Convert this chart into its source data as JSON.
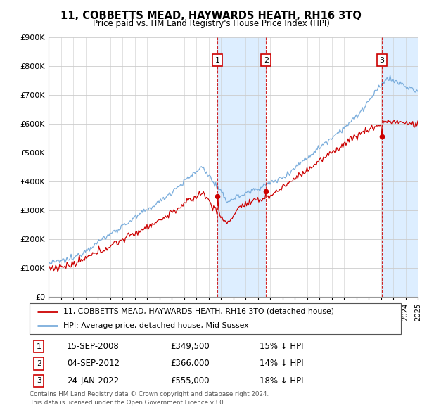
{
  "title": "11, COBBETTS MEAD, HAYWARDS HEATH, RH16 3TQ",
  "subtitle": "Price paid vs. HM Land Registry's House Price Index (HPI)",
  "ylim": [
    0,
    900000
  ],
  "yticks": [
    0,
    100000,
    200000,
    300000,
    400000,
    500000,
    600000,
    700000,
    800000,
    900000
  ],
  "ytick_labels": [
    "£0",
    "£100K",
    "£200K",
    "£300K",
    "£400K",
    "£500K",
    "£600K",
    "£700K",
    "£800K",
    "£900K"
  ],
  "transactions": [
    {
      "num": 1,
      "date": "15-SEP-2008",
      "price": 349500,
      "pct": "15% ↓ HPI",
      "x": 2008.71
    },
    {
      "num": 2,
      "date": "04-SEP-2012",
      "price": 366000,
      "pct": "14% ↓ HPI",
      "x": 2012.67
    },
    {
      "num": 3,
      "date": "24-JAN-2022",
      "price": 555000,
      "pct": "18% ↓ HPI",
      "x": 2022.07
    }
  ],
  "legend_line1": "11, COBBETTS MEAD, HAYWARDS HEATH, RH16 3TQ (detached house)",
  "legend_line2": "HPI: Average price, detached house, Mid Sussex",
  "footer1": "Contains HM Land Registry data © Crown copyright and database right 2024.",
  "footer2": "This data is licensed under the Open Government Licence v3.0.",
  "hpi_color": "#7aaddc",
  "price_color": "#cc0000",
  "shade_color": "#ddeeff",
  "transaction_box_color": "#cc0000",
  "xmin": 1995.0,
  "xmax": 2025.0
}
